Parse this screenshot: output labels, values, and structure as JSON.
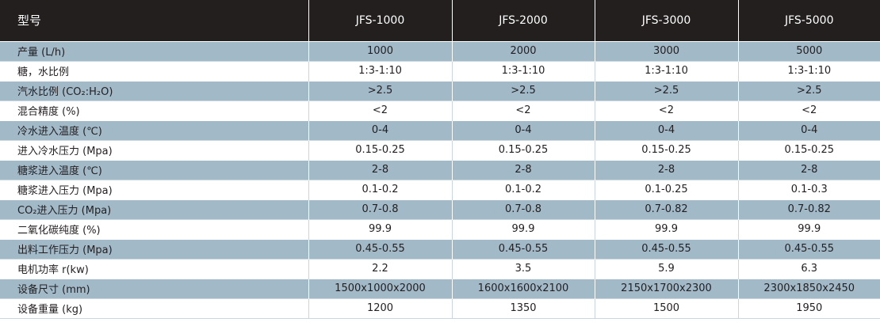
{
  "table": {
    "header": {
      "label": "型号",
      "models": [
        "JFS-1000",
        "JFS-2000",
        "JFS-3000",
        "JFS-5000"
      ]
    },
    "rows": [
      {
        "label": "产量 (L/h)",
        "values": [
          "1000",
          "2000",
          "3000",
          "5000"
        ]
      },
      {
        "label": "糖，水比例",
        "values": [
          "1:3-1:10",
          "1:3-1:10",
          "1:3-1:10",
          "1:3-1:10"
        ]
      },
      {
        "label": "汽水比例 (CO₂:H₂O)",
        "values": [
          ">2.5",
          ">2.5",
          ">2.5",
          ">2.5"
        ]
      },
      {
        "label": "混合精度 (%)",
        "values": [
          "<2",
          "<2",
          "<2",
          "<2"
        ]
      },
      {
        "label": "冷水进入温度 (℃)",
        "values": [
          "0-4",
          "0-4",
          "0-4",
          "0-4"
        ]
      },
      {
        "label": "进入冷水压力 (Mpa)",
        "values": [
          "0.15-0.25",
          "0.15-0.25",
          "0.15-0.25",
          "0.15-0.25"
        ]
      },
      {
        "label": "糖浆进入温度 (℃)",
        "values": [
          "2-8",
          "2-8",
          "2-8",
          "2-8"
        ]
      },
      {
        "label": "糖浆进入压力 (Mpa)",
        "values": [
          "0.1-0.2",
          "0.1-0.2",
          "0.1-0.25",
          "0.1-0.3"
        ]
      },
      {
        "label": "CO₂进入压力 (Mpa)",
        "values": [
          "0.7-0.8",
          "0.7-0.8",
          "0.7-0.82",
          "0.7-0.82"
        ]
      },
      {
        "label": "二氧化碳纯度 (%)",
        "values": [
          "99.9",
          "99.9",
          "99.9",
          "99.9"
        ]
      },
      {
        "label": "出料工作压力 (Mpa)",
        "values": [
          "0.45-0.55",
          "0.45-0.55",
          "0.45-0.55",
          "0.45-0.55"
        ]
      },
      {
        "label": "电机功率 r(kw)",
        "values": [
          "2.2",
          "3.5",
          "5.9",
          "6.3"
        ]
      },
      {
        "label": "设备尺寸 (mm)",
        "values": [
          "1500x1000x2000",
          "1600x1600x2100",
          "2150x1700x2300",
          "2300x1850x2450"
        ]
      },
      {
        "label": "设备重量 (kg)",
        "values": [
          "1200",
          "1350",
          "1500",
          "1950"
        ]
      }
    ]
  },
  "colors": {
    "header_bg": "#231f1f",
    "band_bg": "#a2b9c8",
    "text": "#231f20"
  }
}
